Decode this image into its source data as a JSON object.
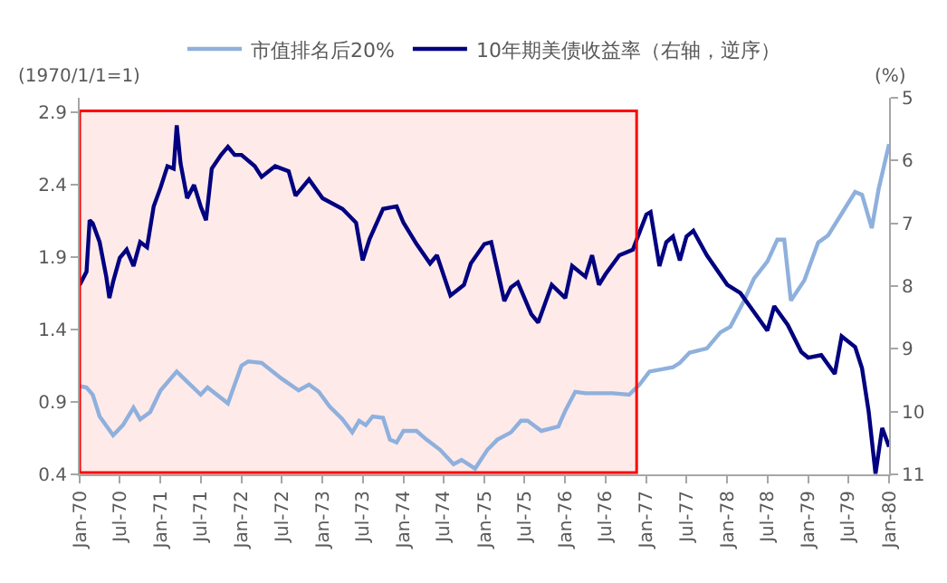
{
  "chart_data": {
    "type": "line",
    "ylabel": "(1970/1/1=1)",
    "y2label": "(%)",
    "xlim": [
      "1970-01-01",
      "1980-01-01"
    ],
    "xticks": [
      {
        "value": "1970-01-01",
        "label": "Jan-70"
      },
      {
        "value": "1970-07-01",
        "label": "Jul-70"
      },
      {
        "value": "1971-01-01",
        "label": "Jan-71"
      },
      {
        "value": "1971-07-01",
        "label": "Jul-71"
      },
      {
        "value": "1972-01-01",
        "label": "Jan-72"
      },
      {
        "value": "1972-07-01",
        "label": "Jul-72"
      },
      {
        "value": "1973-01-01",
        "label": "Jan-73"
      },
      {
        "value": "1973-07-01",
        "label": "Jul-73"
      },
      {
        "value": "1974-01-01",
        "label": "Jan-74"
      },
      {
        "value": "1974-07-01",
        "label": "Jul-74"
      },
      {
        "value": "1975-01-01",
        "label": "Jan-75"
      },
      {
        "value": "1975-07-01",
        "label": "Jul-75"
      },
      {
        "value": "1976-01-01",
        "label": "Jan-76"
      },
      {
        "value": "1976-07-01",
        "label": "Jul-76"
      },
      {
        "value": "1977-01-01",
        "label": "Jan-77"
      },
      {
        "value": "1977-07-01",
        "label": "Jul-77"
      },
      {
        "value": "1978-01-01",
        "label": "Jan-78"
      },
      {
        "value": "1978-07-01",
        "label": "Jul-78"
      },
      {
        "value": "1979-01-01",
        "label": "Jan-79"
      },
      {
        "value": "1979-07-01",
        "label": "Jul-79"
      },
      {
        "value": "1980-01-01",
        "label": "Jan-80"
      }
    ],
    "ylim": [
      0.4,
      3.0
    ],
    "yticks": [
      0.4,
      0.9,
      1.4,
      1.9,
      2.4,
      2.9
    ],
    "y2lim": [
      11,
      5
    ],
    "y2ticks": [
      5,
      6,
      7,
      8,
      9,
      10,
      11
    ],
    "legend": "top",
    "marker": "none",
    "line_style": "solid",
    "bands": [
      {
        "axis": "x",
        "from": "1970-01-01",
        "to": "1976-11-18",
        "color": "#ff0000"
      }
    ],
    "series": [
      {
        "name": "市值排名后20%",
        "color": "#8fb0dc",
        "x": [
          "1970-01-01",
          "1970-02-01",
          "1970-03-01",
          "1970-04-01",
          "1970-06-01",
          "1970-07-15",
          "1970-09-01",
          "1970-10-01",
          "1970-11-15",
          "1971-01-01",
          "1971-03-15",
          "1971-05-01",
          "1971-07-01",
          "1971-08-01",
          "1971-11-01",
          "1972-01-01",
          "1972-02-01",
          "1972-04-01",
          "1972-07-01",
          "1972-09-15",
          "1972-11-01",
          "1972-12-15",
          "1973-02-01",
          "1973-04-01",
          "1973-05-15",
          "1973-06-15",
          "1973-07-15",
          "1973-08-15",
          "1973-10-01",
          "1973-11-01",
          "1973-12-01",
          "1974-01-01",
          "1974-03-01",
          "1974-04-15",
          "1974-06-15",
          "1974-08-15",
          "1974-09-20",
          "1974-11-20",
          "1975-01-15",
          "1975-03-01",
          "1975-05-01",
          "1975-06-15",
          "1975-07-15",
          "1975-09-15",
          "1975-12-01",
          "1976-01-01",
          "1976-02-15",
          "1976-04-01",
          "1976-08-01",
          "1976-10-15",
          "1976-12-01",
          "1977-01-15",
          "1977-05-01",
          "1977-06-01",
          "1977-07-15",
          "1977-10-01",
          "1977-12-01",
          "1978-01-15",
          "1978-03-15",
          "1978-05-01",
          "1978-07-01",
          "1978-08-15",
          "1978-09-15",
          "1978-10-15",
          "1978-12-15",
          "1979-01-15",
          "1979-02-15",
          "1979-04-01",
          "1979-06-01",
          "1979-08-01",
          "1979-09-01",
          "1979-10-15",
          "1979-11-15",
          "1980-01-01"
        ],
        "values": [
          1.01,
          1.0,
          0.95,
          0.8,
          0.67,
          0.74,
          0.86,
          0.78,
          0.83,
          0.98,
          1.11,
          1.04,
          0.95,
          1.0,
          0.89,
          1.15,
          1.18,
          1.17,
          1.06,
          0.98,
          1.02,
          0.97,
          0.87,
          0.78,
          0.69,
          0.77,
          0.74,
          0.8,
          0.79,
          0.64,
          0.62,
          0.7,
          0.7,
          0.64,
          0.57,
          0.47,
          0.5,
          0.44,
          0.57,
          0.64,
          0.69,
          0.77,
          0.77,
          0.7,
          0.73,
          0.84,
          0.97,
          0.96,
          0.96,
          0.95,
          1.02,
          1.11,
          1.14,
          1.17,
          1.24,
          1.27,
          1.38,
          1.42,
          1.59,
          1.75,
          1.87,
          2.02,
          2.02,
          1.6,
          1.74,
          1.87,
          2.0,
          2.05,
          2.2,
          2.35,
          2.33,
          2.1,
          2.37,
          2.68
        ]
      },
      {
        "name": "10年期美债收益率（右轴，逆序）",
        "color": "#000080",
        "axis": "y2",
        "x": [
          "1970-01-01",
          "1970-02-01",
          "1970-02-15",
          "1970-03-01",
          "1970-04-01",
          "1970-05-01",
          "1970-05-15",
          "1970-06-01",
          "1970-07-01",
          "1970-08-01",
          "1970-09-01",
          "1970-10-01",
          "1970-11-01",
          "1970-12-01",
          "1971-01-01",
          "1971-02-01",
          "1971-03-01",
          "1971-03-15",
          "1971-04-01",
          "1971-05-01",
          "1971-06-01",
          "1971-07-01",
          "1971-07-25",
          "1971-08-20",
          "1971-10-01",
          "1971-11-01",
          "1971-12-01",
          "1972-01-01",
          "1972-03-01",
          "1972-04-01",
          "1972-06-01",
          "1972-08-01",
          "1972-09-01",
          "1972-11-01",
          "1973-01-01",
          "1973-04-01",
          "1973-06-01",
          "1973-07-01",
          "1973-08-01",
          "1973-10-01",
          "1973-12-01",
          "1974-01-01",
          "1974-03-01",
          "1974-05-01",
          "1974-06-01",
          "1974-08-01",
          "1974-10-01",
          "1974-11-01",
          "1975-01-01",
          "1975-02-01",
          "1975-04-01",
          "1975-05-01",
          "1975-06-01",
          "1975-08-01",
          "1975-09-01",
          "1975-11-01",
          "1976-01-01",
          "1976-02-01",
          "1976-04-01",
          "1976-05-01",
          "1976-06-01",
          "1976-07-01",
          "1976-09-01",
          "1976-11-01",
          "1977-01-01",
          "1977-01-20",
          "1977-03-01",
          "1977-04-01",
          "1977-05-01",
          "1977-06-01",
          "1977-07-01",
          "1977-08-01",
          "1977-10-01",
          "1978-01-01",
          "1978-03-01",
          "1978-05-01",
          "1978-07-01",
          "1978-08-01",
          "1978-10-01",
          "1978-12-01",
          "1979-01-01",
          "1979-03-01",
          "1979-05-01",
          "1979-06-01",
          "1979-08-01",
          "1979-09-01",
          "1979-10-01",
          "1979-11-01",
          "1979-12-01",
          "1980-01-01"
        ],
        "values": [
          7.98,
          7.77,
          6.95,
          7.0,
          7.3,
          7.85,
          8.19,
          7.93,
          7.55,
          7.42,
          7.68,
          7.3,
          7.38,
          6.73,
          6.43,
          6.09,
          6.13,
          5.44,
          6.04,
          6.6,
          6.39,
          6.73,
          6.95,
          6.13,
          5.91,
          5.78,
          5.91,
          5.91,
          6.09,
          6.26,
          6.09,
          6.17,
          6.56,
          6.3,
          6.6,
          6.77,
          6.99,
          7.59,
          7.25,
          6.77,
          6.73,
          6.99,
          7.33,
          7.64,
          7.51,
          8.15,
          7.98,
          7.64,
          7.33,
          7.3,
          8.24,
          8.02,
          7.94,
          8.45,
          8.58,
          7.98,
          8.19,
          7.68,
          7.85,
          7.51,
          7.98,
          7.81,
          7.51,
          7.42,
          6.86,
          6.82,
          7.68,
          7.3,
          7.21,
          7.59,
          7.21,
          7.12,
          7.51,
          7.98,
          8.11,
          8.41,
          8.71,
          8.32,
          8.62,
          9.05,
          9.14,
          9.1,
          9.4,
          8.8,
          8.97,
          9.31,
          10.0,
          10.99,
          10.26,
          10.56
        ]
      }
    ]
  }
}
